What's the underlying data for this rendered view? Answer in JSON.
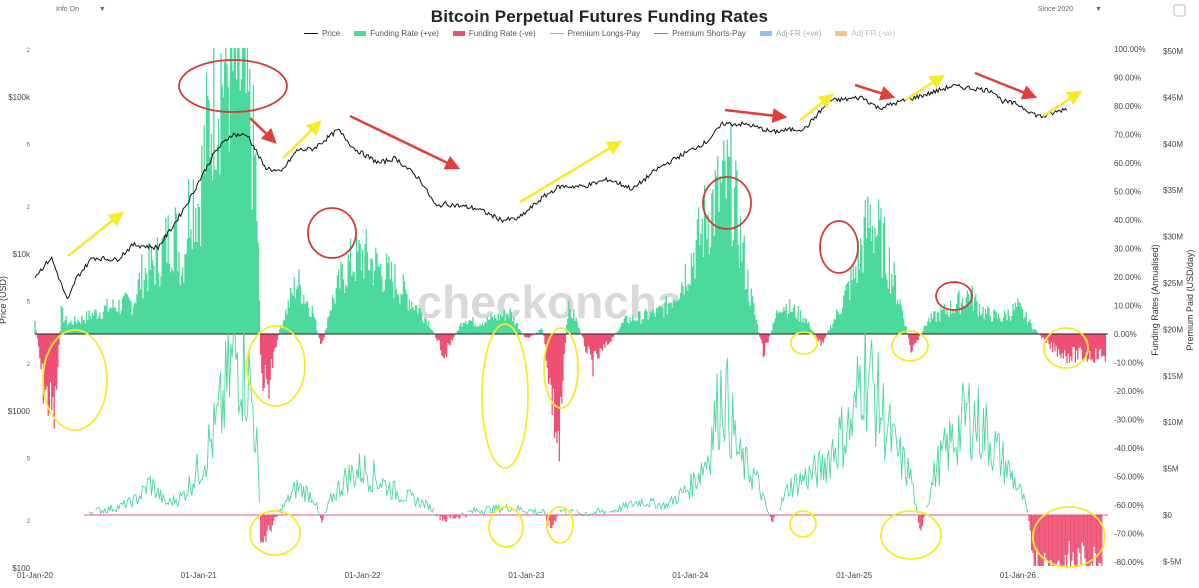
{
  "controls": {
    "left_label": "Info On",
    "left_arrow": "▼",
    "right_label": "Since 2020",
    "right_arrow": "▼"
  },
  "chart_data": {
    "type": "area",
    "title": "Bitcoin Perpetual Futures Funding Rates",
    "watermark": "checkonchain",
    "legend": [
      {
        "name": "Price",
        "color": "#111111",
        "style": "line"
      },
      {
        "name": "Funding Rate (+ve)",
        "color": "#4cd99c",
        "style": "area"
      },
      {
        "name": "Funding Rate (-ve)",
        "color": "#ef4f73",
        "style": "area"
      },
      {
        "name": "Premium Longs-Pay",
        "color": "#4cd99c",
        "style": "line"
      },
      {
        "name": "Premium Shorts-Pay",
        "color": "#ef4f73",
        "style": "line"
      },
      {
        "name": "Adj-FR (+ve)",
        "color": "#8fbff0",
        "style": "area"
      },
      {
        "name": "Adj-FR (-ve)",
        "color": "#f5c489",
        "style": "area"
      }
    ],
    "x_ticks": [
      "01-Jan-20",
      "01-Jan-21",
      "01-Jan-22",
      "01-Jan-23",
      "01-Jan-24",
      "01-Jan-25",
      "01-Jan-26"
    ],
    "left_axis": {
      "title": "Price (USD)",
      "scale": "log",
      "range": [
        100,
        200000
      ],
      "major_ticks": [
        {
          "v": 100,
          "label": "$100"
        },
        {
          "v": 1000,
          "label": "$1000"
        },
        {
          "v": 10000,
          "label": "$10k"
        },
        {
          "v": 100000,
          "label": "$100k"
        }
      ],
      "minor_ticks": [
        {
          "v": 200,
          "label": "2"
        },
        {
          "v": 500,
          "label": "5"
        },
        {
          "v": 2000,
          "label": "2"
        },
        {
          "v": 5000,
          "label": "5"
        },
        {
          "v": 20000,
          "label": "2"
        },
        {
          "v": 50000,
          "label": "5"
        },
        {
          "v": 200000,
          "label": "2"
        }
      ]
    },
    "funding_axis": {
      "title": "Funding Rates (Annualised)",
      "range": [
        -80,
        100
      ],
      "ticks": [
        "100.00%",
        "90.00%",
        "80.00%",
        "70.00%",
        "60.00%",
        "50.00%",
        "40.00%",
        "30.00%",
        "20.00%",
        "10.00%",
        "0.00%",
        "-10.00%",
        "-20.00%",
        "-30.00%",
        "-40.00%",
        "-50.00%",
        "-60.00%",
        "-70.00%",
        "-80.00%"
      ]
    },
    "premium_axis": {
      "title": "Premium Paid (USD/day)",
      "range": [
        -5,
        50
      ],
      "ticks": [
        "$50M",
        "$45M",
        "$40M",
        "$35M",
        "$30M",
        "$25M",
        "$20M",
        "$15M",
        "$10M",
        "$5M",
        "$0",
        "$-5M"
      ]
    },
    "price": {
      "name": "Price",
      "x": [
        2020.0,
        2020.1,
        2020.2,
        2020.25,
        2020.35,
        2020.5,
        2020.6,
        2020.75,
        2020.85,
        2020.95,
        2021.0,
        2021.1,
        2021.2,
        2021.3,
        2021.4,
        2021.5,
        2021.6,
        2021.7,
        2021.85,
        2021.95,
        2022.1,
        2022.2,
        2022.35,
        2022.45,
        2022.5,
        2022.7,
        2022.85,
        2022.95,
        2023.1,
        2023.2,
        2023.35,
        2023.5,
        2023.65,
        2023.8,
        2023.95,
        2024.1,
        2024.2,
        2024.35,
        2024.5,
        2024.6,
        2024.7,
        2024.85,
        2024.95,
        2025.05,
        2025.15,
        2025.3,
        2025.45,
        2025.6,
        2025.75,
        2025.85,
        2025.9,
        2026.0,
        2026.1,
        2026.15,
        2026.3
      ],
      "y": [
        7200,
        9500,
        5000,
        7000,
        9500,
        9200,
        11500,
        11000,
        15500,
        23000,
        29000,
        45000,
        58000,
        57000,
        36000,
        33000,
        46000,
        47000,
        62000,
        47000,
        38000,
        41000,
        30000,
        20000,
        21000,
        19500,
        16500,
        16800,
        23000,
        27000,
        27000,
        30000,
        26000,
        35000,
        43000,
        52000,
        68000,
        67000,
        60000,
        62000,
        63000,
        95000,
        97000,
        100000,
        85000,
        95000,
        105000,
        118000,
        113000,
        110000,
        95000,
        90000,
        78000,
        75000,
        85000
      ]
    },
    "funding_rate": {
      "name": "Funding Rate (+ve / -ve)",
      "unit": "% annualised",
      "x": [
        2020.0,
        2020.05,
        2020.12,
        2020.16,
        2020.2,
        2020.3,
        2020.45,
        2020.6,
        2020.65,
        2020.75,
        2020.85,
        2020.9,
        2020.95,
        2021.0,
        2021.05,
        2021.1,
        2021.15,
        2021.2,
        2021.25,
        2021.3,
        2021.35,
        2021.38,
        2021.42,
        2021.5,
        2021.6,
        2021.7,
        2021.75,
        2021.8,
        2021.9,
        2022.0,
        2022.2,
        2022.4,
        2022.5,
        2022.62,
        2022.7,
        2022.9,
        2023.0,
        2023.1,
        2023.2,
        2023.25,
        2023.3,
        2023.4,
        2023.6,
        2023.8,
        2023.85,
        2023.95,
        2024.05,
        2024.1,
        2024.2,
        2024.25,
        2024.35,
        2024.45,
        2024.55,
        2024.7,
        2024.8,
        2024.9,
        2024.95,
        2025.0,
        2025.1,
        2025.2,
        2025.3,
        2025.35,
        2025.45,
        2025.6,
        2025.7,
        2025.8,
        2025.9,
        2026.0,
        2026.1,
        2026.2,
        2026.3
      ],
      "y": [
        5,
        -20,
        -32,
        8,
        4,
        6,
        10,
        12,
        22,
        28,
        40,
        25,
        55,
        50,
        75,
        95,
        100,
        100,
        100,
        85,
        60,
        -15,
        -20,
        3,
        20,
        8,
        -6,
        10,
        25,
        30,
        20,
        5,
        -8,
        6,
        4,
        8,
        -2,
        2,
        -45,
        10,
        6,
        -12,
        5,
        8,
        10,
        20,
        35,
        45,
        55,
        58,
        20,
        -8,
        12,
        6,
        -4,
        8,
        15,
        22,
        45,
        30,
        8,
        -7,
        5,
        10,
        15,
        8,
        6,
        10,
        2,
        -5,
        -8
      ]
    },
    "premium": {
      "name": "Premium Longs-Pay / Shorts-Pay",
      "unit": "USD M per day",
      "x": [
        2020.0,
        2020.1,
        2020.2,
        2020.3,
        2020.4,
        2020.5,
        2020.6,
        2020.65,
        2020.7,
        2020.8,
        2020.9,
        2021.0,
        2021.1,
        2021.15,
        2021.2,
        2021.25,
        2021.3,
        2021.35,
        2021.38,
        2021.42,
        2021.5,
        2021.6,
        2021.7,
        2021.75,
        2021.8,
        2021.9,
        2022.0,
        2022.2,
        2022.4,
        2022.5,
        2022.7,
        2022.9,
        2023.0,
        2023.1,
        2023.15,
        2023.2,
        2023.3,
        2023.5,
        2023.7,
        2023.85,
        2024.0,
        2024.1,
        2024.15,
        2024.2,
        2024.3,
        2024.4,
        2024.5,
        2024.6,
        2024.8,
        2024.9,
        2025.0,
        2025.05,
        2025.15,
        2025.25,
        2025.35,
        2025.4,
        2025.5,
        2025.6,
        2025.7,
        2025.8,
        2025.9,
        2026.0,
        2026.05,
        2026.1,
        2026.2,
        2026.3
      ],
      "y": [
        0,
        0.2,
        0.3,
        0.3,
        0.5,
        0.8,
        1.5,
        2.2,
        3.5,
        1.2,
        2,
        5,
        9,
        12,
        16,
        18,
        15,
        9,
        -3,
        -2,
        0.5,
        3,
        2,
        -1,
        1.5,
        4,
        5,
        2.5,
        1,
        -0.5,
        0.5,
        0.8,
        0.5,
        0.3,
        -1.5,
        0.5,
        0.2,
        0.3,
        1.5,
        1,
        3,
        6,
        10,
        14,
        6,
        4,
        -1,
        3,
        5,
        8,
        10,
        17,
        12,
        7,
        4,
        -2,
        5,
        8,
        11,
        9,
        6,
        3,
        1,
        -5,
        -6,
        -5
      ]
    },
    "annotations": {
      "yellow_arrows_up": 7,
      "red_arrows_down": 6,
      "red_circles": 5,
      "yellow_ellipses": 13
    }
  }
}
